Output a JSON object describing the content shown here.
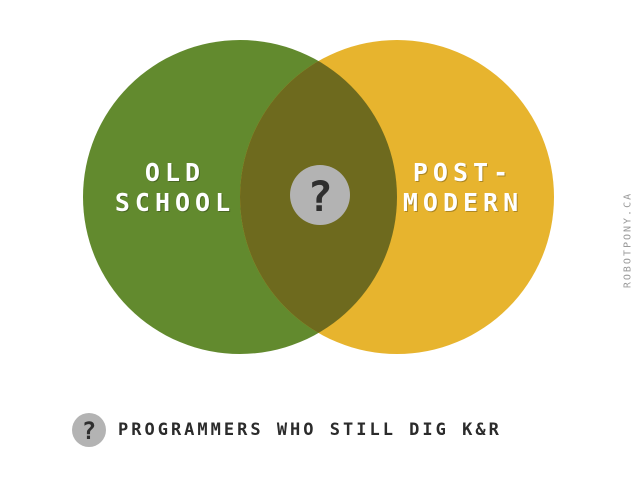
{
  "diagram": {
    "left_set": {
      "lines": [
        "OLD",
        "SCHOOL"
      ],
      "color": "#628A2E"
    },
    "right_set": {
      "lines": [
        "POST-",
        "MODERN"
      ],
      "color": "#E7B42E"
    },
    "intersection": {
      "color": "#6E6A1E",
      "marker": "?"
    },
    "marker_color": "#B3B3B3",
    "legend": {
      "marker": "?",
      "text": "PROGRAMMERS WHO STILL DIG K&R"
    },
    "credit": "ROBOTPONY.CA"
  }
}
